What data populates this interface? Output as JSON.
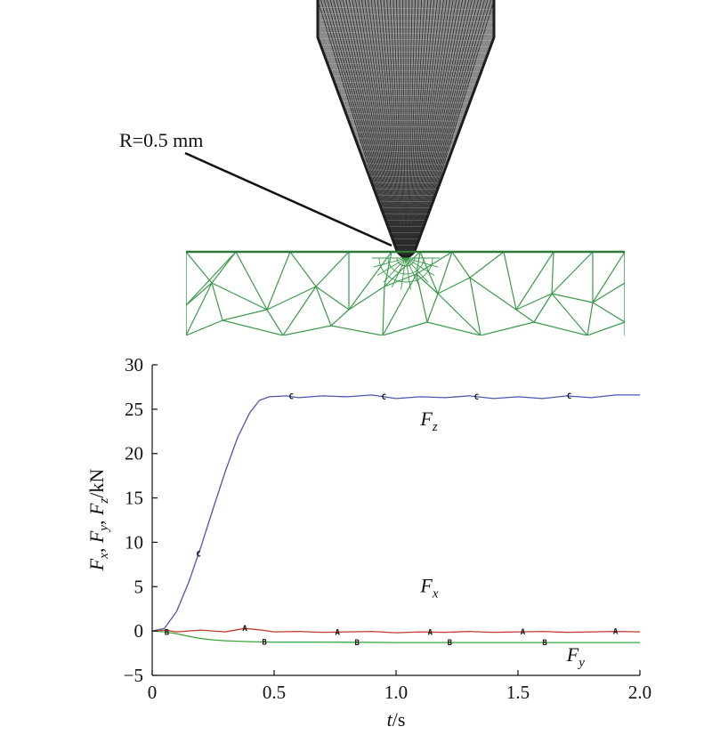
{
  "top_panel": {
    "radius_annotation": "R=0.5 mm",
    "tool_color": "#2a2a2a",
    "mesh_color": "#3a9a4a"
  },
  "chart_data": {
    "type": "line",
    "x_label": "t/s",
    "y_label": "Fx, Fy, Fz/kN",
    "xlim": [
      0,
      2.0
    ],
    "ylim": [
      -5,
      30
    ],
    "x_ticks": [
      0,
      0.5,
      1.0,
      1.5,
      2.0
    ],
    "x_tick_labels": [
      "0",
      "0.5",
      "1.0",
      "1.5",
      "2.0"
    ],
    "y_ticks": [
      -5,
      0,
      5,
      10,
      15,
      20,
      25,
      30
    ],
    "y_tick_labels": [
      "−5",
      "0",
      "5",
      "10",
      "15",
      "20",
      "25",
      "30"
    ],
    "series": [
      {
        "name": "Fz",
        "color": "#4a56b0",
        "marker": "C",
        "marker_x": [
          0.19,
          0.57,
          0.95,
          1.33,
          1.71
        ],
        "points": [
          [
            0,
            0
          ],
          [
            0.05,
            0.3
          ],
          [
            0.1,
            2.2
          ],
          [
            0.15,
            5.5
          ],
          [
            0.2,
            9.5
          ],
          [
            0.25,
            13.8
          ],
          [
            0.3,
            18.0
          ],
          [
            0.35,
            21.8
          ],
          [
            0.4,
            24.6
          ],
          [
            0.44,
            26.0
          ],
          [
            0.48,
            26.4
          ],
          [
            0.55,
            26.5
          ],
          [
            0.6,
            26.3
          ],
          [
            0.7,
            26.5
          ],
          [
            0.8,
            26.4
          ],
          [
            0.9,
            26.6
          ],
          [
            1.0,
            26.2
          ],
          [
            1.1,
            26.4
          ],
          [
            1.2,
            26.3
          ],
          [
            1.3,
            26.5
          ],
          [
            1.4,
            26.2
          ],
          [
            1.5,
            26.4
          ],
          [
            1.6,
            26.2
          ],
          [
            1.7,
            26.5
          ],
          [
            1.8,
            26.3
          ],
          [
            1.9,
            26.6
          ],
          [
            2.0,
            26.6
          ]
        ]
      },
      {
        "name": "Fx",
        "color": "#c0392b",
        "marker": "A",
        "marker_x": [
          0.38,
          0.76,
          1.14,
          1.52,
          1.9
        ],
        "points": [
          [
            0,
            0
          ],
          [
            0.05,
            0.1
          ],
          [
            0.1,
            -0.1
          ],
          [
            0.2,
            0.1
          ],
          [
            0.3,
            -0.1
          ],
          [
            0.38,
            0.3
          ],
          [
            0.45,
            0.1
          ],
          [
            0.5,
            -0.1
          ],
          [
            0.6,
            -0.05
          ],
          [
            0.7,
            -0.15
          ],
          [
            0.8,
            -0.1
          ],
          [
            0.9,
            -0.05
          ],
          [
            1.0,
            -0.2
          ],
          [
            1.1,
            -0.1
          ],
          [
            1.2,
            -0.15
          ],
          [
            1.3,
            -0.05
          ],
          [
            1.4,
            -0.15
          ],
          [
            1.5,
            -0.1
          ],
          [
            1.6,
            -0.05
          ],
          [
            1.7,
            -0.15
          ],
          [
            1.8,
            -0.1
          ],
          [
            1.9,
            -0.05
          ],
          [
            2.0,
            -0.1
          ]
        ]
      },
      {
        "name": "Fy",
        "color": "#3aa53a",
        "marker": "B",
        "marker_x": [
          0.06,
          0.46,
          0.84,
          1.22,
          1.61
        ],
        "points": [
          [
            0,
            0
          ],
          [
            0.05,
            -0.1
          ],
          [
            0.1,
            -0.3
          ],
          [
            0.15,
            -0.6
          ],
          [
            0.2,
            -0.85
          ],
          [
            0.25,
            -1.0
          ],
          [
            0.3,
            -1.1
          ],
          [
            0.4,
            -1.2
          ],
          [
            0.5,
            -1.25
          ],
          [
            0.7,
            -1.25
          ],
          [
            1.0,
            -1.3
          ],
          [
            1.3,
            -1.3
          ],
          [
            1.6,
            -1.3
          ],
          [
            2.0,
            -1.3
          ]
        ]
      }
    ],
    "curve_labels": [
      {
        "base": "F",
        "sub": "z",
        "x": 1.1,
        "y": 23.2
      },
      {
        "base": "F",
        "sub": "x",
        "x": 1.1,
        "y": 4.4
      },
      {
        "base": "F",
        "sub": "y",
        "x": 1.7,
        "y": -3.4
      }
    ]
  }
}
